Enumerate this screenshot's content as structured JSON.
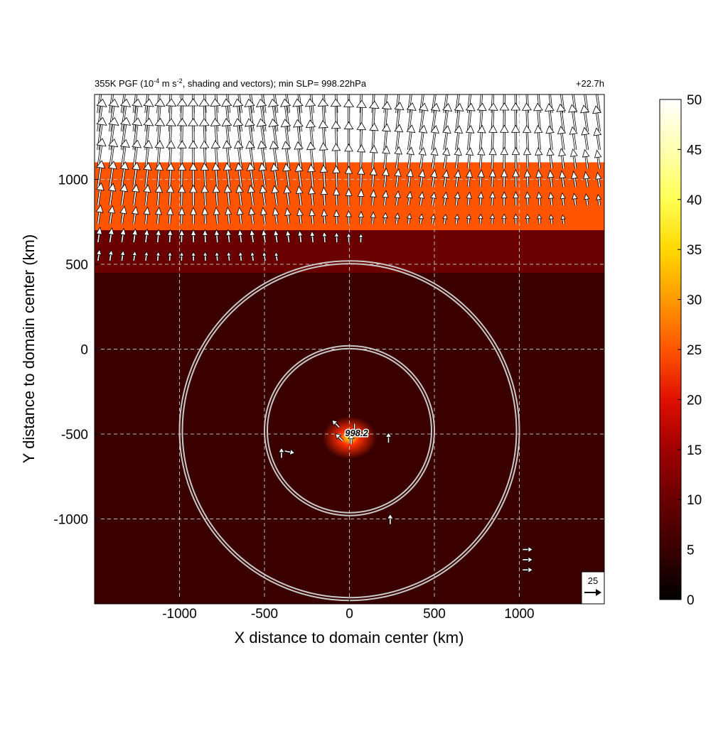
{
  "chart_data": {
    "type": "heatmap",
    "title_left": {
      "prefix": "355K PGF (10",
      "exp1": "-4",
      "mid": " m s",
      "exp2": "-2",
      "suffix": ", shading and vectors); min SLP= 998.22hPa"
    },
    "title_right": "+22.7h",
    "xlabel": "X distance to domain center (km)",
    "ylabel": "Y distance to domain center (km)",
    "xlim": [
      -1500,
      1500
    ],
    "ylim": [
      -1500,
      1500
    ],
    "x_ticks": [
      -1000,
      -500,
      0,
      500,
      1000
    ],
    "x_tick_labels": [
      "-1000",
      "-500",
      "0",
      "500",
      "1000"
    ],
    "y_ticks": [
      -1000,
      -500,
      0,
      500,
      1000
    ],
    "y_tick_labels": [
      "-1000",
      "-500",
      "0",
      "500",
      "1000"
    ],
    "grid": true,
    "colorbar": {
      "range": [
        0,
        50
      ],
      "ticks": [
        0,
        5,
        10,
        15,
        20,
        25,
        30,
        35,
        40,
        45,
        50
      ],
      "tick_labels": [
        "0",
        "5",
        "10",
        "15",
        "20",
        "25",
        "30",
        "35",
        "40",
        "45",
        "50"
      ],
      "colors": [
        "#000000",
        "#3a0000",
        "#6a0000",
        "#a00000",
        "#e01000",
        "#ff5500",
        "#ff9a00",
        "#ffd800",
        "#ffff55",
        "#ffffb0",
        "#ffffff"
      ]
    },
    "center_marker": {
      "x": 0,
      "y": -480,
      "label": "998.2"
    },
    "range_rings": [
      {
        "center": [
          0,
          -480
        ],
        "radius": 500
      },
      {
        "center": [
          0,
          -480
        ],
        "radius": 1000
      }
    ],
    "reference_vector": {
      "label": "25",
      "magnitude": 25
    },
    "field_description_bands": [
      {
        "y_from": 1100,
        "y_to": 1500,
        "value": 50
      },
      {
        "y_from": 700,
        "y_to": 1100,
        "value": 25
      },
      {
        "y_from": 450,
        "y_to": 700,
        "value": 12
      },
      {
        "y_from": -1500,
        "y_to": 450,
        "value": 5
      }
    ]
  }
}
